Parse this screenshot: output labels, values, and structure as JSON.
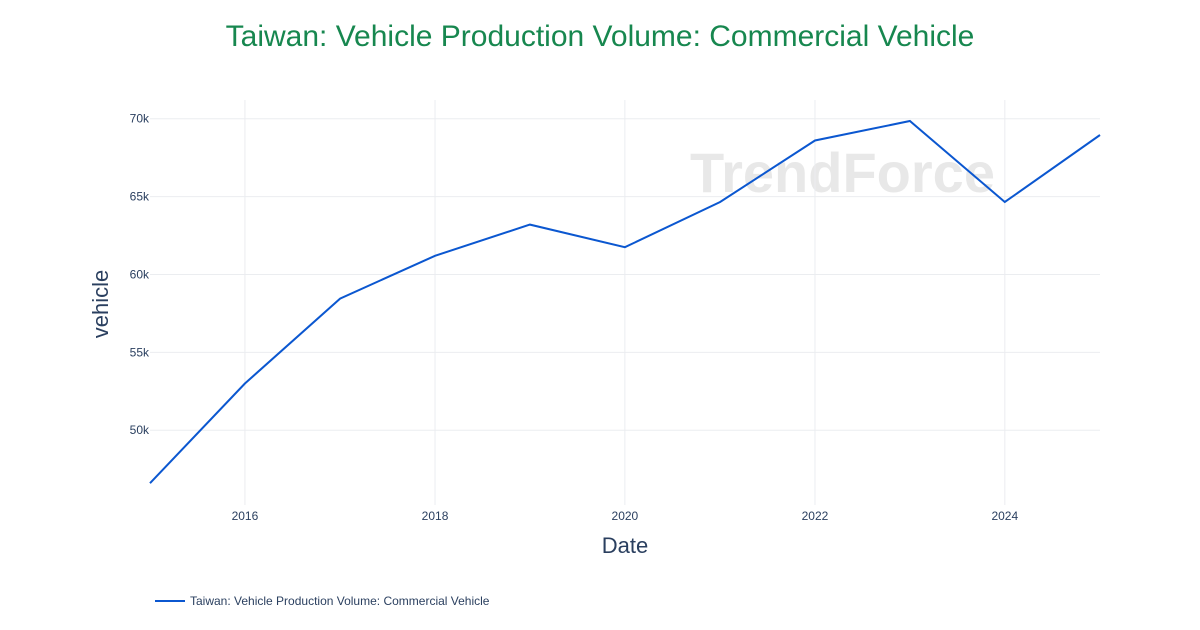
{
  "title": "Taiwan: Vehicle Production Volume: Commercial Vehicle",
  "watermark": "TrendForce",
  "colors": {
    "title": "#17874f",
    "line": "#0b57d0",
    "grid": "#ebedf0",
    "text": "#2a3f5f"
  },
  "chart_data": {
    "type": "line",
    "title": "Taiwan: Vehicle Production Volume: Commercial Vehicle",
    "xlabel": "Date",
    "ylabel": "vehicle",
    "x_ticks": [
      "2016",
      "2018",
      "2020",
      "2022",
      "2024"
    ],
    "y_ticks": [
      "50k",
      "55k",
      "60k",
      "65k",
      "70k"
    ],
    "y_tick_values": [
      50000,
      55000,
      60000,
      65000,
      70000
    ],
    "x_range": [
      "2015-01-01",
      "2025-01-01"
    ],
    "ylim": [
      45200,
      71200
    ],
    "grid": true,
    "legend_position": "bottom-left",
    "series": [
      {
        "name": "Taiwan: Vehicle Production Volume: Commercial Vehicle",
        "x": [
          "2015-01-01",
          "2016-01-01",
          "2017-01-01",
          "2018-01-01",
          "2019-01-01",
          "2020-01-01",
          "2021-01-01",
          "2022-01-01",
          "2023-01-01",
          "2024-01-01",
          "2025-01-01"
        ],
        "values": [
          46600,
          53000,
          58450,
          61200,
          63200,
          61750,
          64650,
          68600,
          69850,
          64650,
          68950
        ]
      }
    ]
  }
}
